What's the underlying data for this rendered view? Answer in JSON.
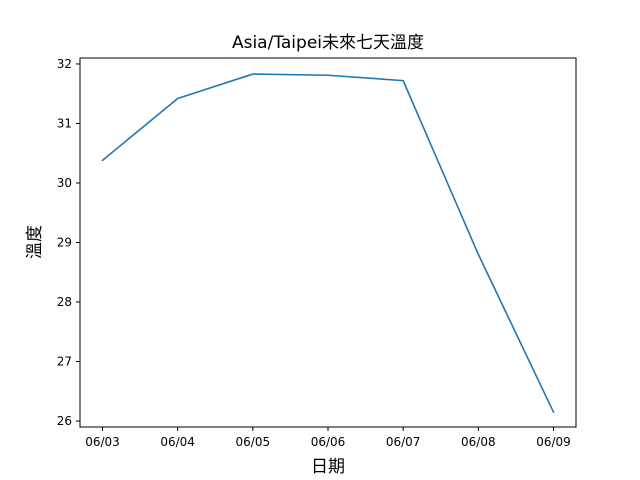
{
  "chart_data": {
    "type": "line",
    "title": "Asia/Taipei未來七天溫度",
    "xlabel": "日期",
    "ylabel": "溫度",
    "categories": [
      "06/03",
      "06/04",
      "06/05",
      "06/06",
      "06/07",
      "06/08",
      "06/09"
    ],
    "series": [
      {
        "values": [
          30.38,
          31.42,
          31.83,
          31.81,
          31.72,
          28.8,
          26.15
        ],
        "color": "#1f77b4"
      }
    ],
    "ylim": [
      25.9,
      32.1
    ],
    "yticks": [
      26,
      27,
      28,
      29,
      30,
      31,
      32
    ],
    "grid": false,
    "legend": "none"
  }
}
